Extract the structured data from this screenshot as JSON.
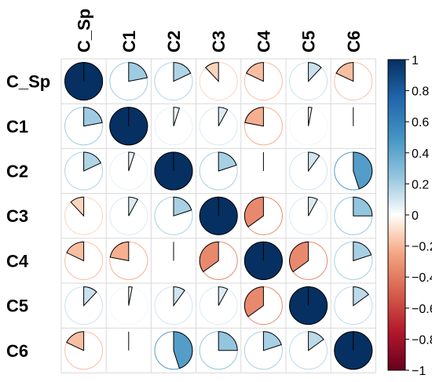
{
  "chart_data": {
    "type": "heatmap",
    "style": "pie-correlation-matrix",
    "title": "",
    "variables": [
      "C_Sp",
      "C1",
      "C2",
      "C3",
      "C4",
      "C5",
      "C6"
    ],
    "matrix": [
      [
        1.0,
        0.22,
        0.18,
        -0.12,
        -0.18,
        0.12,
        -0.18
      ],
      [
        0.22,
        1.0,
        0.05,
        0.08,
        -0.22,
        0.03,
        0.0
      ],
      [
        0.18,
        0.05,
        1.0,
        0.2,
        0.0,
        0.1,
        0.45
      ],
      [
        -0.12,
        0.08,
        0.2,
        1.0,
        -0.35,
        0.08,
        0.25
      ],
      [
        -0.18,
        -0.22,
        0.0,
        -0.35,
        1.0,
        -0.35,
        0.2
      ],
      [
        0.12,
        0.03,
        0.1,
        0.08,
        -0.35,
        1.0,
        0.15
      ],
      [
        -0.18,
        0.0,
        0.45,
        0.25,
        0.2,
        0.15,
        1.0
      ]
    ],
    "colorbar": {
      "range": [
        -1,
        1
      ],
      "ticks": [
        "1",
        "0.8",
        "0.6",
        "0.4",
        "0.2",
        "0",
        "−0.2",
        "−0.4",
        "−0.6",
        "−0.8",
        "−1"
      ],
      "colors": [
        {
          "value": -1.0,
          "color": "#67001F"
        },
        {
          "value": -0.75,
          "color": "#B2182B"
        },
        {
          "value": -0.5,
          "color": "#D6604D"
        },
        {
          "value": -0.25,
          "color": "#F4A582"
        },
        {
          "value": -0.1,
          "color": "#FDDBC7"
        },
        {
          "value": 0.0,
          "color": "#FFFFFF"
        },
        {
          "value": 0.1,
          "color": "#D1E5F0"
        },
        {
          "value": 0.25,
          "color": "#92C5DE"
        },
        {
          "value": 0.5,
          "color": "#4393C3"
        },
        {
          "value": 0.75,
          "color": "#2166AC"
        },
        {
          "value": 1.0,
          "color": "#053061"
        }
      ]
    },
    "grid": true,
    "legend": "right"
  }
}
